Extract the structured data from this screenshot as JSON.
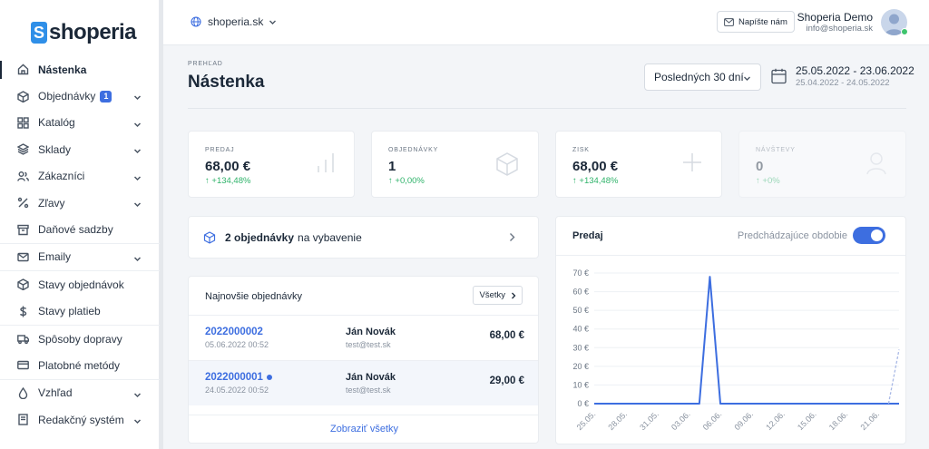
{
  "app": {
    "logo_text": "shoperia"
  },
  "topbar": {
    "site": "shoperia.sk",
    "message_button": "Napíšte nám",
    "user_name": "Shoperia Demo",
    "user_email": "info@shoperia.sk"
  },
  "sidebar": {
    "items": [
      {
        "label": "Nástenka",
        "icon": "home-icon",
        "active": true
      },
      {
        "label": "Objednávky",
        "icon": "cube-icon",
        "badge": "1",
        "chevron": true
      },
      {
        "label": "Katalóg",
        "icon": "grid-icon",
        "chevron": true
      },
      {
        "label": "Sklady",
        "icon": "layers-icon",
        "chevron": true
      },
      {
        "label": "Zákazníci",
        "icon": "users-icon",
        "chevron": true
      },
      {
        "label": "Zľavy",
        "icon": "percent-icon",
        "chevron": true
      },
      {
        "label": "Daňové sadzby",
        "icon": "archive-icon"
      },
      {
        "label": "Emaily",
        "icon": "mail-icon",
        "chevron": true
      },
      {
        "label": "Stavy objednávok",
        "icon": "cube-icon"
      },
      {
        "label": "Stavy platieb",
        "icon": "dollar-icon"
      },
      {
        "label": "Spôsoby dopravy",
        "icon": "truck-icon"
      },
      {
        "label": "Platobné metódy",
        "icon": "card-icon"
      },
      {
        "label": "Vzhľad",
        "icon": "drop-icon",
        "chevron": true
      },
      {
        "label": "Redakčný systém",
        "icon": "doc-icon",
        "chevron": true
      }
    ]
  },
  "header": {
    "eyebrow": "PREHĽAD",
    "title": "Nástenka",
    "period": "Posledných 30 dní",
    "date_range": "25.05.2022 - 23.06.2022",
    "date_range_prev": "25.04.2022 - 24.05.2022"
  },
  "stats": [
    {
      "label": "PREDAJ",
      "value": "68,00 €",
      "change": "+134,48%",
      "icon": "bar-chart-icon"
    },
    {
      "label": "OBJEDNÁVKY",
      "value": "1",
      "change": "+0,00%",
      "icon": "box-icon"
    },
    {
      "label": "ZISK",
      "value": "68,00 €",
      "change": "+134,48%",
      "icon": "plus-icon"
    },
    {
      "label": "NÁVŠTEVY",
      "value": "0",
      "change": "+0%",
      "icon": "user-icon"
    }
  ],
  "pending": {
    "count_text": "2 objednávky",
    "suffix": "na vybavenie"
  },
  "orders": {
    "title": "Najnovšie objednávky",
    "all_button": "Všetky",
    "show_all": "Zobraziť všetky",
    "rows": [
      {
        "id": "2022000002",
        "date": "05.06.2022 00:52",
        "customer": "Ján Novák",
        "email": "test@test.sk",
        "amount": "68,00 €",
        "new": false
      },
      {
        "id": "2022000001",
        "date": "24.05.2022 00:52",
        "customer": "Ján Novák",
        "email": "test@test.sk",
        "amount": "29,00 €",
        "new": true
      }
    ]
  },
  "sales": {
    "title": "Predaj",
    "toggle_label": "Predchádzajúce obdobie",
    "toggle_on": true
  },
  "colors": {
    "accent": "#3d6ee0",
    "positive": "#2fb36a",
    "brand": "#2f8fe8"
  },
  "chart_data": {
    "type": "line",
    "title": "Predaj",
    "xlabel": "",
    "ylabel": "",
    "ylim": [
      0,
      70
    ],
    "y_ticks": [
      "0 €",
      "10 €",
      "20 €",
      "30 €",
      "40 €",
      "50 €",
      "60 €",
      "70 €"
    ],
    "x_ticks": [
      "25.05.",
      "28.05.",
      "31.05.",
      "03.06.",
      "06.06.",
      "09.06.",
      "12.06.",
      "15.06.",
      "18.06.",
      "21.06."
    ],
    "x": [
      "25.05.",
      "26.05.",
      "27.05.",
      "28.05.",
      "29.05.",
      "30.05.",
      "31.05.",
      "01.06.",
      "02.06.",
      "03.06.",
      "04.06.",
      "05.06.",
      "06.06.",
      "07.06.",
      "08.06.",
      "09.06.",
      "10.06.",
      "11.06.",
      "12.06.",
      "13.06.",
      "14.06.",
      "15.06.",
      "16.06.",
      "17.06.",
      "18.06.",
      "19.06.",
      "20.06.",
      "21.06.",
      "22.06.",
      "23.06."
    ],
    "series": [
      {
        "values": [
          0,
          0,
          0,
          0,
          0,
          0,
          0,
          0,
          0,
          0,
          0,
          68,
          0,
          0,
          0,
          0,
          0,
          0,
          0,
          0,
          0,
          0,
          0,
          0,
          0,
          0,
          0,
          0,
          0,
          0
        ],
        "style": "solid"
      },
      {
        "values": [
          null,
          null,
          null,
          null,
          null,
          null,
          null,
          null,
          null,
          null,
          null,
          null,
          null,
          null,
          null,
          null,
          null,
          null,
          null,
          null,
          null,
          null,
          null,
          null,
          null,
          null,
          null,
          null,
          0,
          29
        ],
        "style": "dashed"
      }
    ]
  }
}
